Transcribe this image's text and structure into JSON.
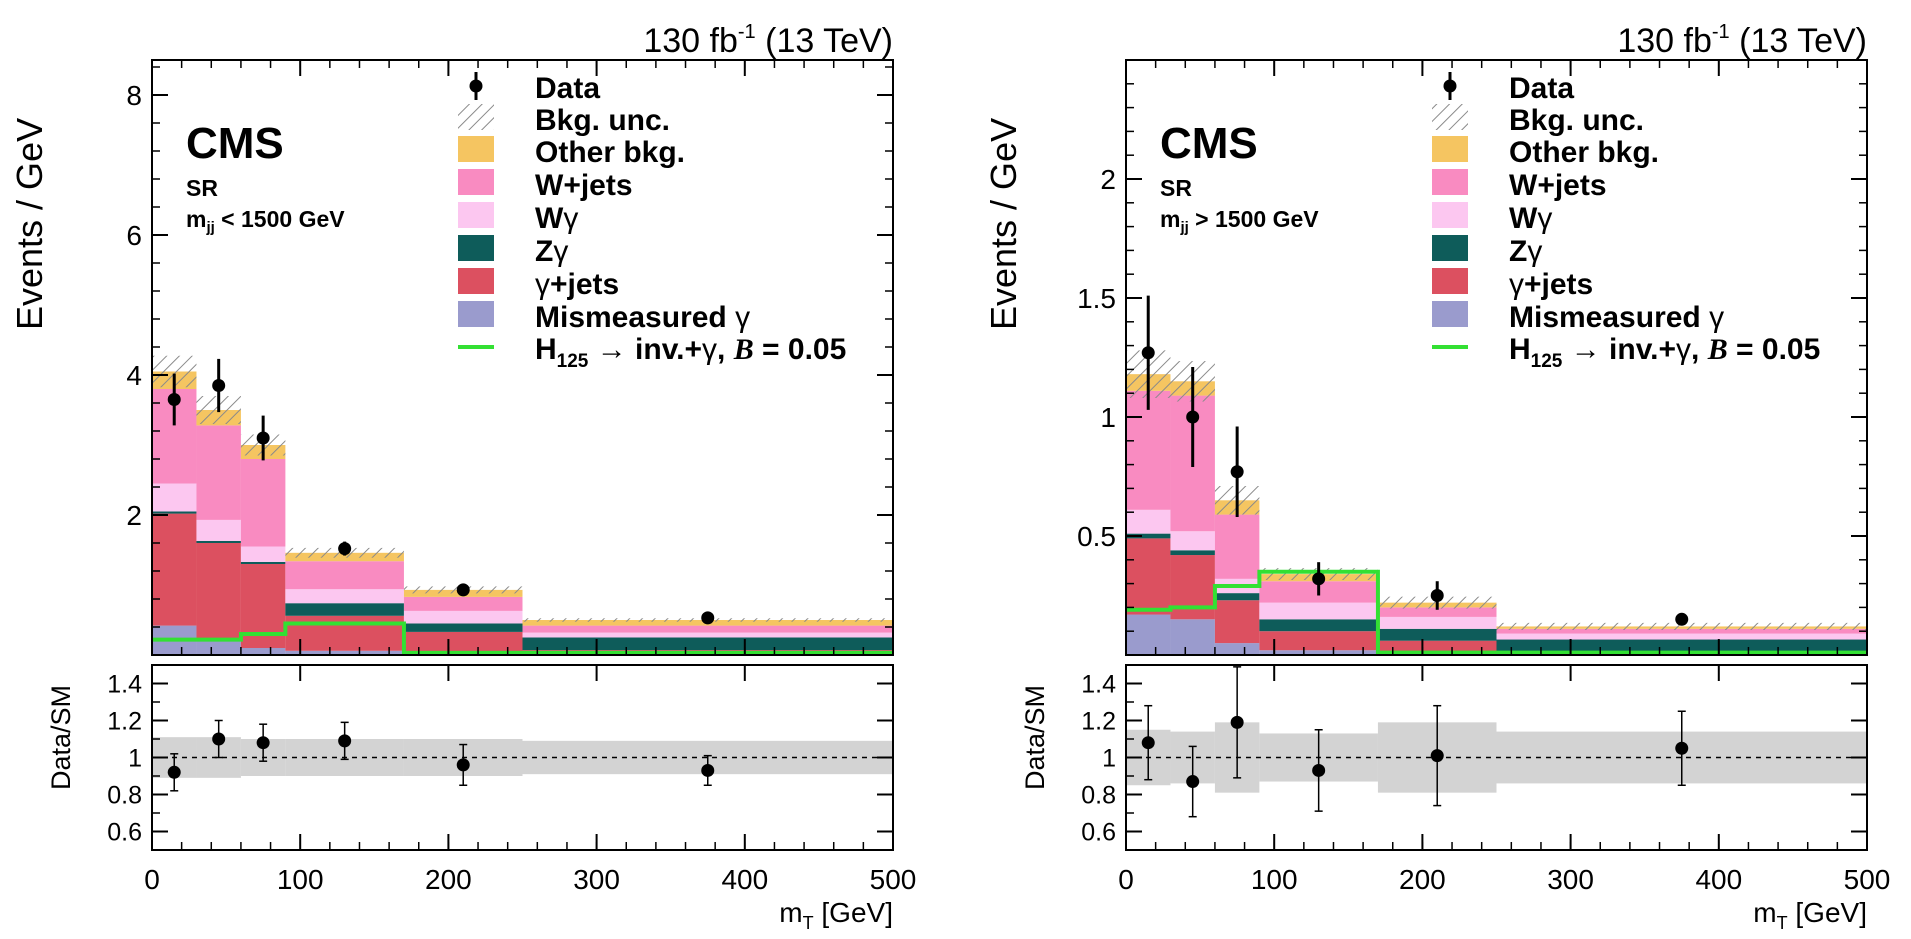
{
  "colors": {
    "other": "#f5c561",
    "wjets": "#f98bc1",
    "wgamma": "#fcc7f0",
    "zgamma": "#0e5c5a",
    "gjets": "#dc5060",
    "mismeasured": "#9a9bcd",
    "signal": "#33e033",
    "unc_hatch": "#999999",
    "ratio_band": "#d3d3d3"
  },
  "labels": {
    "lumi": "130 fb",
    "lumi_exp": "-1",
    "energy": "(13 TeV)",
    "cms": "CMS",
    "ylabel_top": "Events / GeV",
    "ylabel_ratio": "Data/SM",
    "xlabel_base": "m",
    "xlabel_sub": "T",
    "xlabel_unit": "[GeV]",
    "legend": {
      "data": "Data",
      "unc": "Bkg. unc.",
      "other": "Other bkg.",
      "wjets": "W+jets",
      "wgamma_w": "W",
      "zgamma_z": "Z",
      "gamma_sym": "γ",
      "gjets_tail": "+jets",
      "mismeasured": "Mismeasured",
      "signal_h": "H",
      "signal_sub": "125",
      "signal_arrow": "→",
      "signal_inv": "inv.+",
      "signal_b": "B",
      "signal_eq": "= 0.05"
    }
  },
  "chart_data": [
    {
      "type": "bar",
      "title": "130 fb-1 (13 TeV)",
      "region": "SR",
      "selection": {
        "m": "m",
        "sub": "jj",
        "rel": "< 1500 GeV"
      },
      "bin_edges": [
        0,
        30,
        60,
        90,
        170,
        250,
        500
      ],
      "stack": {
        "mismeasured": [
          0.42,
          0.2,
          0.1,
          0.06,
          0.03,
          0.02
        ],
        "gjets": [
          1.6,
          1.4,
          1.2,
          0.5,
          0.3,
          0.05
        ],
        "zgamma": [
          0.03,
          0.03,
          0.03,
          0.18,
          0.12,
          0.18
        ],
        "wgamma": [
          0.4,
          0.3,
          0.22,
          0.2,
          0.18,
          0.07
        ],
        "wjets": [
          1.35,
          1.35,
          1.25,
          0.4,
          0.2,
          0.1
        ],
        "other": [
          0.25,
          0.22,
          0.2,
          0.12,
          0.1,
          0.08
        ]
      },
      "unc": [
        0.45,
        0.4,
        0.3,
        0.14,
        0.1,
        0.05
      ],
      "signal": [
        0.22,
        0.22,
        0.3,
        0.45,
        0.03,
        0.03
      ],
      "data": {
        "x": [
          15,
          45,
          75,
          130,
          210,
          375
        ],
        "y": [
          3.65,
          3.85,
          3.1,
          1.52,
          0.93,
          0.53
        ],
        "err": [
          0.37,
          0.38,
          0.32,
          0.1,
          0.06,
          0.03
        ]
      },
      "ratio": {
        "y": [
          0.92,
          1.1,
          1.08,
          1.09,
          0.96,
          0.93
        ],
        "err": [
          0.1,
          0.1,
          0.1,
          0.1,
          0.11,
          0.08
        ],
        "band": [
          0.11,
          0.11,
          0.1,
          0.1,
          0.1,
          0.09
        ]
      },
      "xlim": [
        0,
        500
      ],
      "ylim": [
        0,
        8.5
      ],
      "ratio_ylim": [
        0.5,
        1.5
      ],
      "yticks": [
        "2",
        "4",
        "6",
        "8"
      ],
      "ytick_values": [
        2,
        4,
        6,
        8
      ],
      "xticks": [
        "0",
        "100",
        "200",
        "300",
        "400",
        "500"
      ],
      "xtick_values": [
        0,
        100,
        200,
        300,
        400,
        500
      ],
      "ratio_yticks": [
        "0.6",
        "0.8",
        "1",
        "1.2",
        "1.4"
      ],
      "ratio_ytick_values": [
        0.6,
        0.8,
        1.0,
        1.2,
        1.4
      ]
    },
    {
      "type": "bar",
      "title": "130 fb-1 (13 TeV)",
      "region": "SR",
      "selection": {
        "m": "m",
        "sub": "jj",
        "rel": "> 1500 GeV"
      },
      "bin_edges": [
        0,
        30,
        60,
        90,
        170,
        250,
        500
      ],
      "stack": {
        "mismeasured": [
          0.17,
          0.15,
          0.05,
          0.02,
          0.01,
          0.005
        ],
        "gjets": [
          0.32,
          0.27,
          0.18,
          0.08,
          0.05,
          0.01
        ],
        "zgamma": [
          0.02,
          0.02,
          0.03,
          0.05,
          0.05,
          0.05
        ],
        "wgamma": [
          0.1,
          0.08,
          0.06,
          0.07,
          0.05,
          0.025
        ],
        "wjets": [
          0.5,
          0.57,
          0.27,
          0.09,
          0.04,
          0.02
        ],
        "other": [
          0.07,
          0.06,
          0.06,
          0.03,
          0.02,
          0.01
        ]
      },
      "unc": [
        0.2,
        0.17,
        0.12,
        0.05,
        0.05,
        0.03
      ],
      "signal": [
        0.19,
        0.2,
        0.29,
        0.35,
        0.01,
        0.01
      ],
      "data": {
        "x": [
          15,
          45,
          75,
          130,
          210,
          375
        ],
        "y": [
          1.27,
          1.0,
          0.77,
          0.32,
          0.25,
          0.15
        ],
        "err": [
          0.24,
          0.21,
          0.19,
          0.07,
          0.06,
          0.02
        ]
      },
      "ratio": {
        "y": [
          1.08,
          0.87,
          1.19,
          0.93,
          1.01,
          1.05
        ],
        "err": [
          0.2,
          0.19,
          0.3,
          0.22,
          0.27,
          0.2
        ],
        "band": [
          0.15,
          0.14,
          0.19,
          0.13,
          0.19,
          0.14
        ]
      },
      "xlim": [
        0,
        500
      ],
      "ylim": [
        0,
        2.5
      ],
      "ratio_ylim": [
        0.5,
        1.5
      ],
      "yticks": [
        "0.5",
        "1",
        "1.5",
        "2"
      ],
      "ytick_values": [
        0.5,
        1.0,
        1.5,
        2.0
      ],
      "xticks": [
        "0",
        "100",
        "200",
        "300",
        "400",
        "500"
      ],
      "xtick_values": [
        0,
        100,
        200,
        300,
        400,
        500
      ],
      "ratio_yticks": [
        "0.6",
        "0.8",
        "1",
        "1.2",
        "1.4"
      ],
      "ratio_ytick_values": [
        0.6,
        0.8,
        1.0,
        1.2,
        1.4
      ]
    }
  ]
}
